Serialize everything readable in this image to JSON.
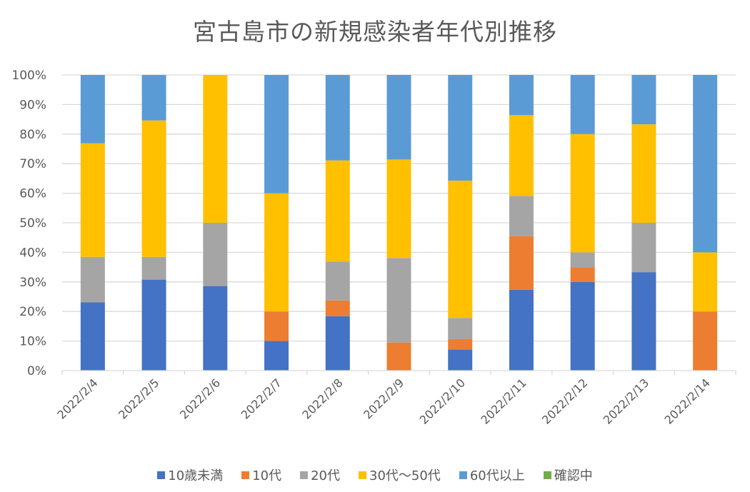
{
  "chart_data": {
    "type": "bar",
    "stacked": "percent",
    "title": "宮古島市の新規感染者年代別推移",
    "xlabel": "",
    "ylabel": "",
    "ylim": [
      0,
      100
    ],
    "y_ticks": [
      "0%",
      "10%",
      "20%",
      "30%",
      "40%",
      "50%",
      "60%",
      "70%",
      "80%",
      "90%",
      "100%"
    ],
    "grid": true,
    "legend_position": "bottom",
    "categories": [
      "2022/2/4",
      "2022/2/5",
      "2022/2/6",
      "2022/2/7",
      "2022/2/8",
      "2022/2/9",
      "2022/2/10",
      "2022/2/11",
      "2022/2/12",
      "2022/2/13",
      "2022/2/14"
    ],
    "series": [
      {
        "name": "10歳未満",
        "color": "#4472C4",
        "values": [
          23.1,
          30.8,
          28.6,
          10.0,
          18.4,
          0.0,
          7.1,
          27.3,
          30.0,
          33.3,
          0.0
        ]
      },
      {
        "name": "10代",
        "color": "#ED7D31",
        "values": [
          0.0,
          0.0,
          0.0,
          10.0,
          5.3,
          9.5,
          3.6,
          18.2,
          5.0,
          0.0,
          20.0
        ]
      },
      {
        "name": "20代",
        "color": "#A5A5A5",
        "values": [
          15.4,
          7.7,
          21.4,
          0.0,
          13.2,
          28.6,
          7.1,
          13.6,
          5.0,
          16.7,
          0.0
        ]
      },
      {
        "name": "30代～50代",
        "color": "#FFC000",
        "values": [
          38.5,
          46.2,
          50.0,
          40.0,
          34.2,
          33.3,
          46.4,
          27.3,
          40.0,
          33.3,
          20.0
        ]
      },
      {
        "name": "60代以上",
        "color": "#5B9BD5",
        "values": [
          23.1,
          15.4,
          0.0,
          40.0,
          28.9,
          28.6,
          35.7,
          13.6,
          20.0,
          16.7,
          60.0
        ]
      },
      {
        "name": "確認中",
        "color": "#70AD47",
        "values": [
          0,
          0,
          0,
          0,
          0,
          0,
          0,
          0,
          0,
          0,
          0
        ]
      }
    ]
  }
}
